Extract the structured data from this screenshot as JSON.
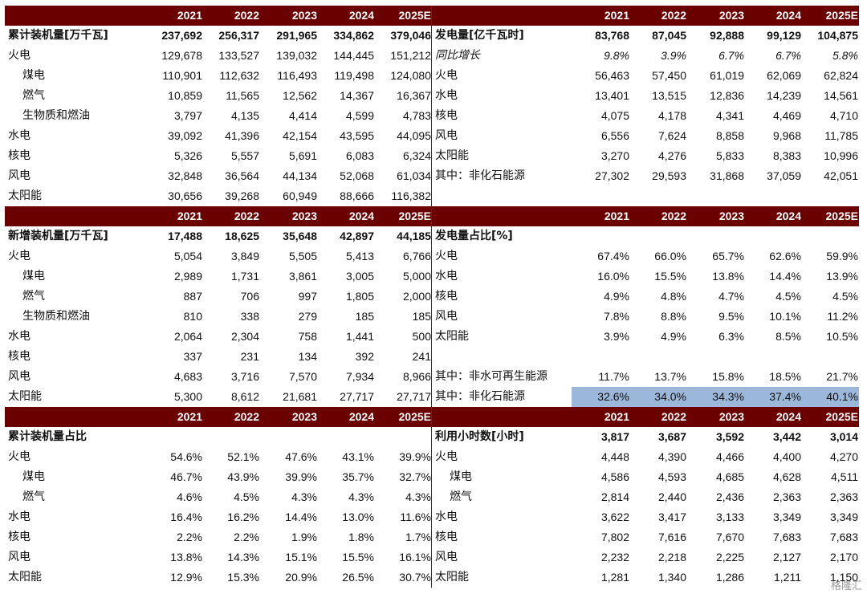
{
  "panels": [
    {
      "id": "cumulative-capacity",
      "header": [
        "2021",
        "2022",
        "2023",
        "2024",
        "2025E"
      ],
      "rows": [
        {
          "label": "累计装机量[万千瓦]",
          "values": [
            "237,692",
            "256,317",
            "291,965",
            "334,862",
            "379,046"
          ],
          "style": "bold"
        },
        {
          "label": "火电",
          "values": [
            "129,678",
            "133,527",
            "139,032",
            "144,445",
            "151,212"
          ]
        },
        {
          "label": "煤电",
          "values": [
            "110,901",
            "112,632",
            "116,493",
            "119,498",
            "124,080"
          ],
          "indent": true
        },
        {
          "label": "燃气",
          "values": [
            "10,859",
            "11,565",
            "12,562",
            "14,367",
            "16,367"
          ],
          "indent": true
        },
        {
          "label": "生物质和燃油",
          "values": [
            "3,797",
            "4,135",
            "4,414",
            "4,599",
            "4,783"
          ],
          "indent": true
        },
        {
          "label": "水电",
          "values": [
            "39,092",
            "41,396",
            "42,154",
            "43,595",
            "44,095"
          ]
        },
        {
          "label": "核电",
          "values": [
            "5,326",
            "5,557",
            "5,691",
            "6,083",
            "6,324"
          ]
        },
        {
          "label": "风电",
          "values": [
            "32,848",
            "36,564",
            "44,134",
            "52,068",
            "61,034"
          ]
        },
        {
          "label": "太阳能",
          "values": [
            "30,656",
            "39,268",
            "60,949",
            "88,666",
            "116,382"
          ]
        }
      ]
    },
    {
      "id": "power-generation",
      "header": [
        "2021",
        "2022",
        "2023",
        "2024",
        "2025E"
      ],
      "rows": [
        {
          "label": "发电量[亿千瓦时]",
          "values": [
            "83,768",
            "87,045",
            "92,888",
            "99,129",
            "104,875"
          ],
          "style": "bold"
        },
        {
          "label": "同比增长",
          "values": [
            "9.8%",
            "3.9%",
            "6.7%",
            "6.7%",
            "5.8%"
          ],
          "style": "italic"
        },
        {
          "label": "火电",
          "values": [
            "56,463",
            "57,450",
            "61,019",
            "62,069",
            "62,824"
          ]
        },
        {
          "label": "水电",
          "values": [
            "13,401",
            "13,515",
            "12,836",
            "14,239",
            "14,561"
          ]
        },
        {
          "label": "核电",
          "values": [
            "4,075",
            "4,178",
            "4,341",
            "4,469",
            "4,710"
          ]
        },
        {
          "label": "风电",
          "values": [
            "6,556",
            "7,624",
            "8,858",
            "9,968",
            "11,785"
          ]
        },
        {
          "label": "太阳能",
          "values": [
            "3,270",
            "4,276",
            "5,833",
            "8,383",
            "10,996"
          ]
        },
        {
          "label": "其中：非化石能源",
          "values": [
            "27,302",
            "29,593",
            "31,868",
            "37,059",
            "42,051"
          ]
        }
      ]
    },
    {
      "id": "new-capacity",
      "header": [
        "2021",
        "2022",
        "2023",
        "2024",
        "2025E"
      ],
      "rows": [
        {
          "label": "新增装机量[万千瓦]",
          "values": [
            "17,488",
            "18,625",
            "35,648",
            "42,897",
            "44,185"
          ],
          "style": "bold"
        },
        {
          "label": "火电",
          "values": [
            "5,054",
            "3,849",
            "5,505",
            "5,413",
            "6,766"
          ]
        },
        {
          "label": "煤电",
          "values": [
            "2,989",
            "1,731",
            "3,861",
            "3,005",
            "5,000"
          ],
          "indent": true
        },
        {
          "label": "燃气",
          "values": [
            "887",
            "706",
            "997",
            "1,805",
            "2,000"
          ],
          "indent": true
        },
        {
          "label": "生物质和燃油",
          "values": [
            "810",
            "338",
            "279",
            "185",
            "185"
          ],
          "indent": true
        },
        {
          "label": "水电",
          "values": [
            "2,064",
            "2,304",
            "758",
            "1,441",
            "500"
          ]
        },
        {
          "label": "核电",
          "values": [
            "337",
            "231",
            "134",
            "392",
            "241"
          ]
        },
        {
          "label": "风电",
          "values": [
            "4,683",
            "3,716",
            "7,570",
            "7,934",
            "8,966"
          ]
        },
        {
          "label": "太阳能",
          "values": [
            "5,300",
            "8,612",
            "21,681",
            "27,717",
            "27,717"
          ]
        }
      ]
    },
    {
      "id": "generation-share",
      "header": [
        "2021",
        "2022",
        "2023",
        "2024",
        "2025E"
      ],
      "rows": [
        {
          "label": "发电量占比[%]",
          "values": [
            "",
            "",
            "",
            "",
            ""
          ],
          "style": "bold"
        },
        {
          "label": "火电",
          "values": [
            "67.4%",
            "66.0%",
            "65.7%",
            "62.6%",
            "59.9%"
          ]
        },
        {
          "label": "水电",
          "values": [
            "16.0%",
            "15.5%",
            "13.8%",
            "14.4%",
            "13.9%"
          ]
        },
        {
          "label": "核电",
          "values": [
            "4.9%",
            "4.8%",
            "4.7%",
            "4.5%",
            "4.5%"
          ]
        },
        {
          "label": "风电",
          "values": [
            "7.8%",
            "8.8%",
            "9.5%",
            "10.1%",
            "11.2%"
          ]
        },
        {
          "label": "太阳能",
          "values": [
            "3.9%",
            "4.9%",
            "6.3%",
            "8.5%",
            "10.5%"
          ]
        },
        {
          "label": "",
          "values": [
            "",
            "",
            "",
            "",
            ""
          ]
        },
        {
          "label": "其中：非水可再生能源",
          "values": [
            "11.7%",
            "13.7%",
            "15.8%",
            "18.5%",
            "21.7%"
          ]
        },
        {
          "label": "其中：非化石能源",
          "values": [
            "32.6%",
            "34.0%",
            "34.3%",
            "37.4%",
            "40.1%"
          ],
          "highlight": true
        }
      ]
    },
    {
      "id": "capacity-share",
      "header": [
        "2021",
        "2022",
        "2023",
        "2024",
        "2025E"
      ],
      "rows": [
        {
          "label": "累计装机量占比",
          "values": [
            "",
            "",
            "",
            "",
            ""
          ],
          "style": "bold"
        },
        {
          "label": "火电",
          "values": [
            "54.6%",
            "52.1%",
            "47.6%",
            "43.1%",
            "39.9%"
          ]
        },
        {
          "label": "煤电",
          "values": [
            "46.7%",
            "43.9%",
            "39.9%",
            "35.7%",
            "32.7%"
          ],
          "indent": true
        },
        {
          "label": "燃气",
          "values": [
            "4.6%",
            "4.5%",
            "4.3%",
            "4.3%",
            "4.3%"
          ],
          "indent": true
        },
        {
          "label": "水电",
          "values": [
            "16.4%",
            "16.2%",
            "14.4%",
            "13.0%",
            "11.6%"
          ]
        },
        {
          "label": "核电",
          "values": [
            "2.2%",
            "2.2%",
            "1.9%",
            "1.8%",
            "1.7%"
          ]
        },
        {
          "label": "风电",
          "values": [
            "13.8%",
            "14.3%",
            "15.1%",
            "15.5%",
            "16.1%"
          ]
        },
        {
          "label": "太阳能",
          "values": [
            "12.9%",
            "15.3%",
            "20.9%",
            "26.5%",
            "30.7%"
          ]
        }
      ]
    },
    {
      "id": "utilization-hours",
      "header": [
        "2021",
        "2022",
        "2023",
        "2024",
        "2025E"
      ],
      "rows": [
        {
          "label": "利用小时数[小时]",
          "values": [
            "3,817",
            "3,687",
            "3,592",
            "3,442",
            "3,014"
          ],
          "style": "bold"
        },
        {
          "label": "火电",
          "values": [
            "4,448",
            "4,390",
            "4,466",
            "4,400",
            "4,270"
          ]
        },
        {
          "label": "煤电",
          "values": [
            "4,586",
            "4,593",
            "4,685",
            "4,628",
            "4,511"
          ],
          "indent": true
        },
        {
          "label": "燃气",
          "values": [
            "2,814",
            "2,440",
            "2,436",
            "2,363",
            "2,363"
          ],
          "indent": true
        },
        {
          "label": "水电",
          "values": [
            "3,622",
            "3,417",
            "3,133",
            "3,349",
            "3,349"
          ]
        },
        {
          "label": "核电",
          "values": [
            "7,802",
            "7,616",
            "7,670",
            "7,683",
            "7,683"
          ]
        },
        {
          "label": "风电",
          "values": [
            "2,232",
            "2,218",
            "2,225",
            "2,127",
            "2,170"
          ]
        },
        {
          "label": "太阳能",
          "values": [
            "1,281",
            "1,340",
            "1,286",
            "1,211",
            "1,150"
          ]
        }
      ]
    }
  ],
  "colors": {
    "header_bg": "#6b0000",
    "header_text": "#ffffff",
    "highlight": "#9bb7d9"
  },
  "watermark": "格隆汇"
}
